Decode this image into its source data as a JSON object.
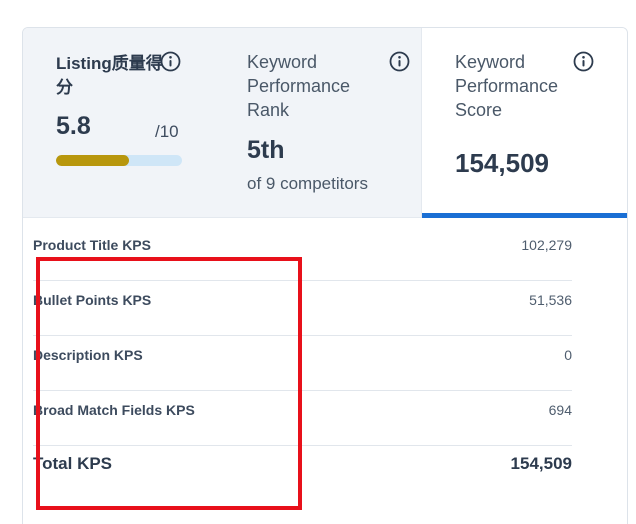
{
  "metrics": {
    "listing": {
      "title": "Listing质量得分",
      "score": "5.8",
      "max": "/10",
      "progress_fraction": 0.58,
      "progress_color": "#b8970d",
      "track_color": "#cfe6f7",
      "icon": "info-icon"
    },
    "rank": {
      "label": "Keyword Performance Rank",
      "value": "5th",
      "subtitle": "of 9 competitors",
      "icon": "info-icon"
    },
    "score": {
      "label": "Keyword Performance Score",
      "value": "154,509",
      "icon": "info-icon",
      "active": true,
      "active_color": "#1a6fd4"
    }
  },
  "breakdown": {
    "rows": [
      {
        "label": "Product Title KPS",
        "value": "102,279"
      },
      {
        "label": "Bullet Points KPS",
        "value": "51,536"
      },
      {
        "label": "Description KPS",
        "value": "0"
      },
      {
        "label": "Broad Match Fields KPS",
        "value": "694"
      }
    ],
    "total": {
      "label": "Total KPS",
      "value": "154,509"
    }
  },
  "highlight_color": "#e8101a"
}
